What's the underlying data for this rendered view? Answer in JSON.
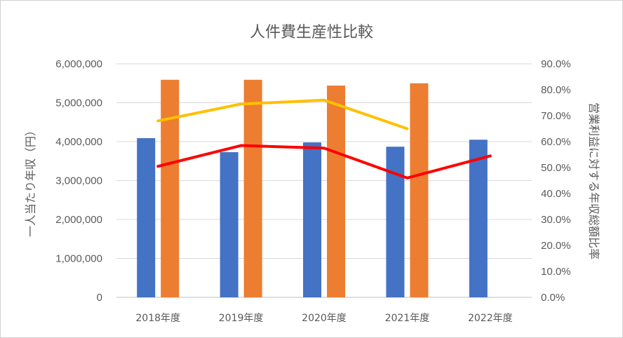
{
  "chart_data": {
    "type": "bar",
    "title": "人件費生産性比較",
    "categories": [
      "2018年度",
      "2019年度",
      "2020年度",
      "2021年度",
      "2022年度"
    ],
    "ylabel": "一人当たり年収（円）",
    "y2label": "営業利益に対する年収総額比率",
    "ylim": [
      0,
      6000000
    ],
    "y2lim": [
      0,
      0.9
    ],
    "yticks": [
      "0",
      "1,000,000",
      "2,000,000",
      "3,000,000",
      "4,000,000",
      "5,000,000",
      "6,000,000"
    ],
    "y2ticks": [
      "0.0%",
      "10.0%",
      "20.0%",
      "30.0%",
      "40.0%",
      "50.0%",
      "60.0%",
      "70.0%",
      "80.0%",
      "90.0%"
    ],
    "grid": true,
    "bar_series": [
      {
        "color": "#4472C4",
        "values": [
          4090000,
          3730000,
          3980000,
          3870000,
          4050000
        ]
      },
      {
        "color": "#ED7D31",
        "values": [
          5590000,
          5590000,
          5440000,
          5500000,
          null
        ]
      }
    ],
    "line_series": [
      {
        "color": "#FFC000",
        "axis": "right",
        "values": [
          0.68,
          0.745,
          0.76,
          0.65,
          null
        ]
      },
      {
        "color": "#FF0000",
        "axis": "right",
        "values": [
          0.505,
          0.585,
          0.575,
          0.46,
          0.545
        ]
      }
    ]
  }
}
